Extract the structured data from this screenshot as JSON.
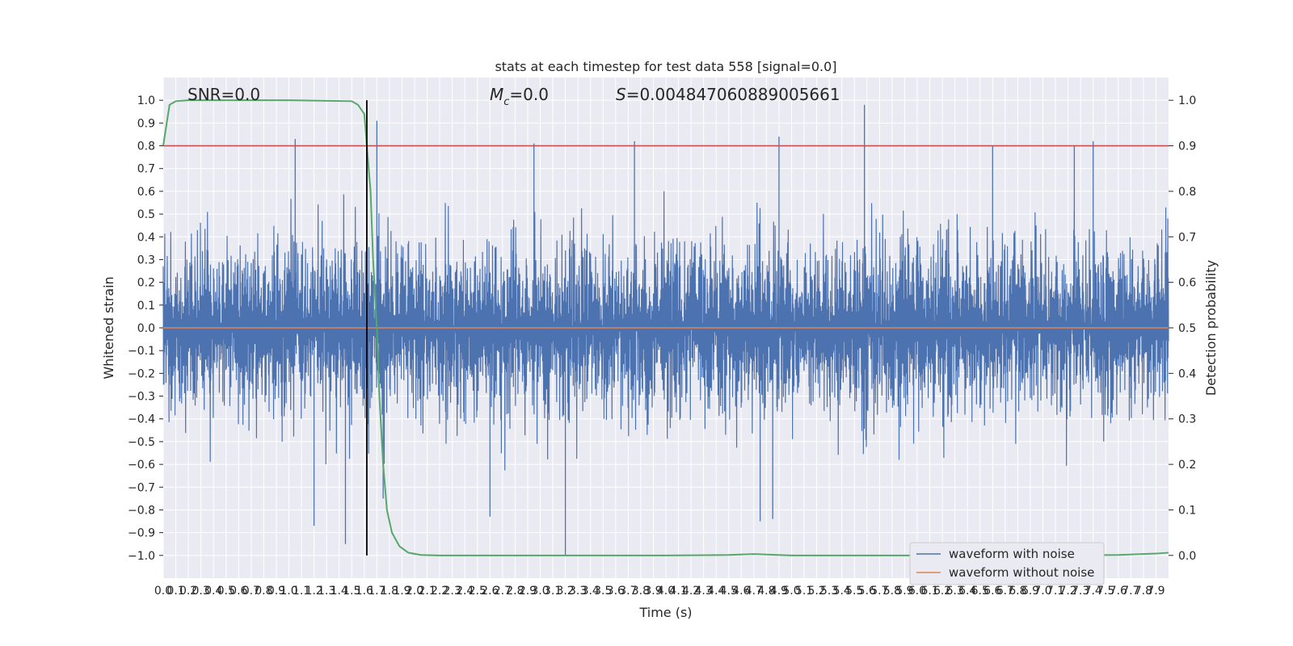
{
  "chart_data": {
    "type": "line",
    "title": "stats at each timestep for test data 558 [signal=0.0]",
    "xlabel": "Time (s)",
    "ylabel": "Whitened strain",
    "y2label": "Detection probability",
    "xlim": [
      0.0,
      8.0
    ],
    "ylim": [
      -1.1,
      1.1
    ],
    "y2lim": [
      -0.05,
      1.05
    ],
    "x_ticks": [
      "0.0",
      "0.1",
      "0.2",
      "0.3",
      "0.4",
      "0.5",
      "0.6",
      "0.7",
      "0.8",
      "0.9",
      "1.0",
      "1.1",
      "1.2",
      "1.3",
      "1.4",
      "1.5",
      "1.6",
      "1.7",
      "1.8",
      "1.9",
      "2.0",
      "2.1",
      "2.2",
      "2.3",
      "2.4",
      "2.5",
      "2.6",
      "2.7",
      "2.8",
      "2.9",
      "3.0",
      "3.1",
      "3.2",
      "3.3",
      "3.4",
      "3.5",
      "3.6",
      "3.7",
      "3.8",
      "3.9",
      "4.0",
      "4.1",
      "4.2",
      "4.3",
      "4.4",
      "4.5",
      "4.6",
      "4.7",
      "4.8",
      "4.9",
      "5.0",
      "5.1",
      "5.2",
      "5.3",
      "5.4",
      "5.5",
      "5.6",
      "5.7",
      "5.8",
      "5.9",
      "6.0",
      "6.1",
      "6.2",
      "6.3",
      "6.4",
      "6.5",
      "6.6",
      "6.7",
      "6.8",
      "6.9",
      "7.0",
      "7.1",
      "7.2",
      "7.3",
      "7.4",
      "7.5",
      "7.6",
      "7.7",
      "7.8",
      "7.9"
    ],
    "y_ticks": [
      "1.0",
      "0.9",
      "0.8",
      "0.7",
      "0.6",
      "0.5",
      "0.4",
      "0.3",
      "0.2",
      "0.1",
      "0.0",
      "-0.1",
      "-0.2",
      "-0.3",
      "-0.4",
      "-0.5",
      "-0.6",
      "-0.7",
      "-0.8",
      "-0.9",
      "-1.0"
    ],
    "y2_ticks": [
      "1.0",
      "0.9",
      "0.8",
      "0.7",
      "0.6",
      "0.5",
      "0.4",
      "0.3",
      "0.2",
      "0.1",
      "0.0"
    ],
    "annotations": {
      "snr": "SNR=0.0",
      "mc_symbol": "M",
      "mc_sub": "c",
      "mc_value": "=0.0",
      "s_symbol": "S",
      "s_value": "=0.004847060889005661"
    },
    "noise_amplitude_typical": 0.45,
    "noise_spikes": [
      {
        "x": 1.05,
        "y": 0.83
      },
      {
        "x": 1.62,
        "y": 0.72
      },
      {
        "x": 1.7,
        "y": 0.91
      },
      {
        "x": 2.95,
        "y": 0.81
      },
      {
        "x": 3.75,
        "y": 0.82
      },
      {
        "x": 4.9,
        "y": 0.84
      },
      {
        "x": 5.58,
        "y": 0.98
      },
      {
        "x": 6.6,
        "y": 0.8
      },
      {
        "x": 7.25,
        "y": 0.8
      },
      {
        "x": 7.4,
        "y": 0.82
      },
      {
        "x": 1.75,
        "y": -0.75
      },
      {
        "x": 3.2,
        "y": -1.0
      },
      {
        "x": 4.75,
        "y": -0.85
      },
      {
        "x": 4.85,
        "y": -0.84
      },
      {
        "x": 2.6,
        "y": -0.83
      },
      {
        "x": 1.45,
        "y": -0.95
      },
      {
        "x": 1.2,
        "y": -0.87
      }
    ],
    "detection_probability": {
      "x": [
        0.0,
        0.05,
        0.1,
        0.2,
        0.5,
        1.0,
        1.5,
        1.55,
        1.6,
        1.62,
        1.65,
        1.67,
        1.7,
        1.72,
        1.75,
        1.78,
        1.82,
        1.88,
        1.95,
        2.05,
        2.2,
        3.0,
        4.0,
        4.5,
        4.7,
        5.0,
        6.0,
        7.0,
        7.6,
        7.9,
        8.0
      ],
      "y": [
        0.9,
        0.99,
        0.998,
        1.0,
        1.0,
        1.0,
        0.998,
        0.99,
        0.97,
        0.9,
        0.8,
        0.65,
        0.5,
        0.35,
        0.2,
        0.1,
        0.05,
        0.02,
        0.006,
        0.001,
        0.0,
        0.0,
        0.0,
        0.001,
        0.003,
        0.0,
        0.0,
        0.0,
        0.001,
        0.004,
        0.006
      ]
    },
    "threshold_probability": 0.9,
    "detection_time": 1.62,
    "series": [
      {
        "name": "waveform with noise",
        "color": "#4c72b0"
      },
      {
        "name": "waveform without noise",
        "color": "#dd8452"
      }
    ],
    "detection_color": "#55a868",
    "threshold_color": "#c44e52",
    "legend_position": "lower-right",
    "grid": true
  }
}
